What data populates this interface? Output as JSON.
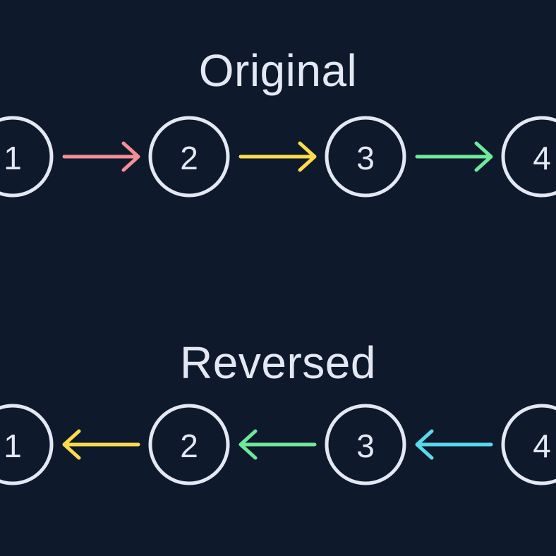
{
  "titles": {
    "original": "Original",
    "reversed": "Reversed"
  },
  "colors": {
    "background": "#0f192c",
    "node_stroke": "#e3e8f2",
    "text": "#e3e8f2"
  },
  "original": {
    "nodes": [
      "1",
      "2",
      "3",
      "4"
    ],
    "links": [
      {
        "from": "1",
        "to": "2",
        "color": "#f28f94"
      },
      {
        "from": "2",
        "to": "3",
        "color": "#fcdc4c"
      },
      {
        "from": "3",
        "to": "4",
        "color": "#6ee89a"
      }
    ]
  },
  "reversed": {
    "nodes": [
      "1",
      "2",
      "3",
      "4"
    ],
    "links": [
      {
        "from": "2",
        "to": "1",
        "color": "#fcdc4c"
      },
      {
        "from": "3",
        "to": "2",
        "color": "#6ee89a"
      },
      {
        "from": "4",
        "to": "3",
        "color": "#5ad8ec"
      }
    ]
  }
}
